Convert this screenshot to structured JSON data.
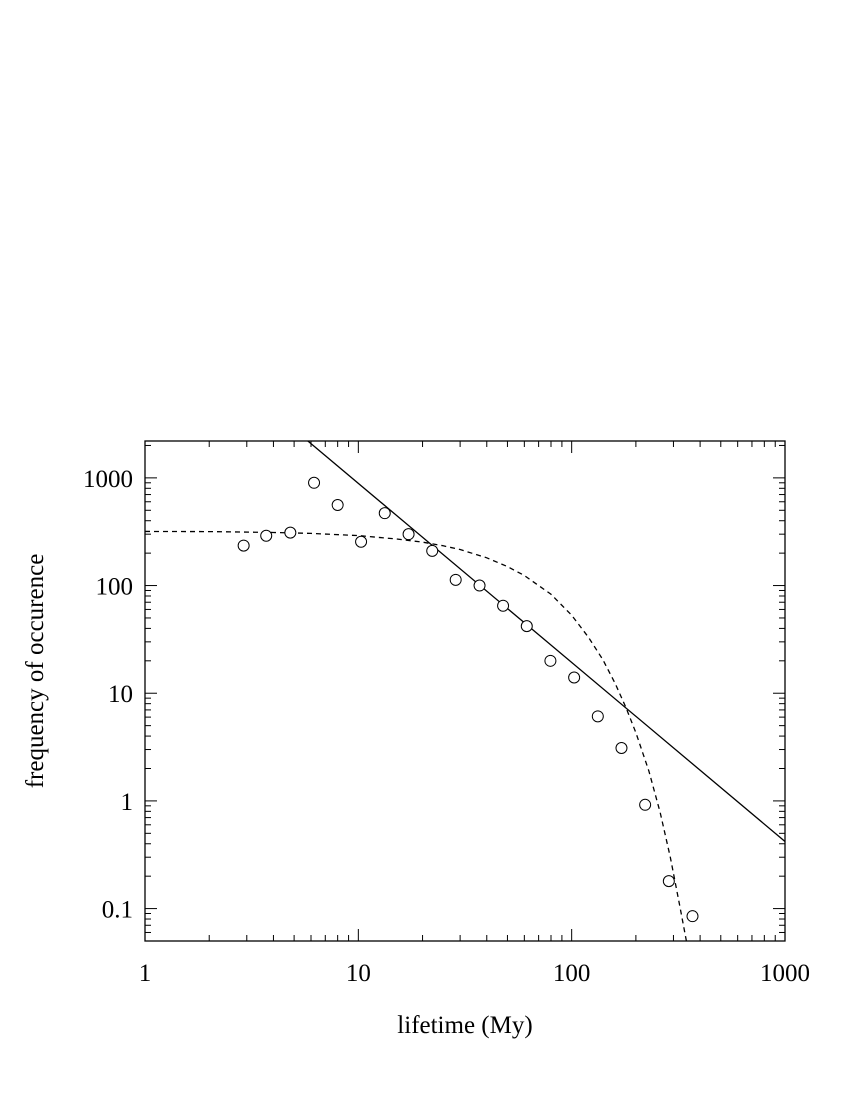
{
  "chart_data": {
    "type": "scatter",
    "xlabel": "lifetime (My)",
    "ylabel": "frequency of occurence",
    "x_scale": "log",
    "y_scale": "log",
    "xlim": [
      1,
      1000
    ],
    "ylim": [
      0.05,
      2200
    ],
    "grid": false,
    "x_ticks": [
      {
        "value": 1,
        "label": "1"
      },
      {
        "value": 10,
        "label": "10"
      },
      {
        "value": 100,
        "label": "100"
      },
      {
        "value": 1000,
        "label": "1000"
      }
    ],
    "y_ticks": [
      {
        "value": 0.1,
        "label": "0.1"
      },
      {
        "value": 1,
        "label": "1"
      },
      {
        "value": 10,
        "label": "10"
      },
      {
        "value": 100,
        "label": "100"
      },
      {
        "value": 1000,
        "label": "1000"
      }
    ],
    "series": [
      {
        "kind": "points",
        "marker": "open-circle",
        "x": [
          2.9,
          3.7,
          4.8,
          6.2,
          8.0,
          10.3,
          13.3,
          17.2,
          22.2,
          28.6,
          37.0,
          47.7,
          61.6,
          79.5,
          102.7,
          132.6,
          171.2,
          221.0,
          285.4,
          368.5
        ],
        "y": [
          235,
          290,
          310,
          900,
          560,
          255,
          470,
          300,
          210,
          113,
          100,
          65,
          42,
          20,
          14,
          6.1,
          3.1,
          0.92,
          0.18,
          0.085
        ]
      },
      {
        "kind": "line",
        "style": "solid",
        "x": [
          5.8,
          1000
        ],
        "y": [
          2200,
          0.42
        ]
      },
      {
        "kind": "line",
        "style": "dashed",
        "x": [
          1,
          2,
          4,
          6,
          10,
          15,
          20,
          25,
          30,
          40,
          50,
          60,
          80,
          100,
          120,
          140,
          160,
          180,
          200,
          230,
          260,
          290,
          320,
          345
        ],
        "y": [
          318,
          317,
          311,
          305,
          291,
          271,
          253,
          234,
          216,
          181,
          150,
          124,
          83,
          53,
          33,
          20.5,
          12.3,
          7.3,
          4.3,
          1.9,
          0.78,
          0.3,
          0.11,
          0.05
        ]
      }
    ],
    "colors": {
      "ink": "#000000",
      "background": "#ffffff"
    }
  }
}
